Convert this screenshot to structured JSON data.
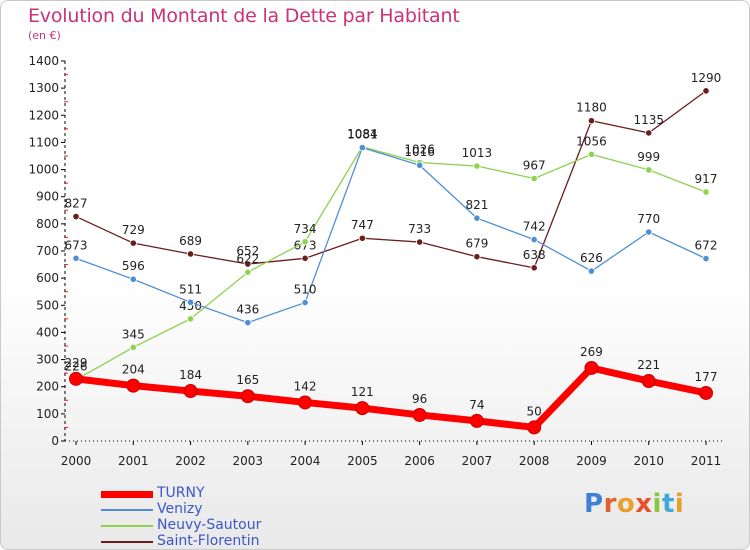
{
  "title": "Evolution du Montant de la Dette par Habitant",
  "subtitle": "(en €)",
  "logo": "Proxiti",
  "chart_data": {
    "type": "line",
    "title": "Evolution du Montant de la Dette par Habitant",
    "subtitle": "(en €)",
    "x": [
      "2000",
      "2001",
      "2002",
      "2003",
      "2004",
      "2005",
      "2006",
      "2007",
      "2008",
      "2009",
      "2010",
      "2011"
    ],
    "ylim": [
      0,
      1400
    ],
    "yticks": [
      0,
      100,
      200,
      300,
      400,
      500,
      600,
      700,
      800,
      900,
      1000,
      1100,
      1200,
      1300,
      1400
    ],
    "grid": false,
    "legend_position": "bottom-left",
    "series": [
      {
        "name": "Saint-Florentin",
        "color": "#6b1d1d",
        "values": [
          827,
          729,
          689,
          652,
          673,
          747,
          733,
          679,
          638,
          1180,
          1135,
          1290
        ]
      },
      {
        "name": "Neuvy-Sautour",
        "color": "#8fd151",
        "values": [
          226,
          345,
          450,
          622,
          734,
          1084,
          1026,
          1013,
          967,
          1056,
          999,
          917
        ]
      },
      {
        "name": "Venizy",
        "color": "#4f8fd4",
        "values": [
          673,
          596,
          511,
          436,
          510,
          1081,
          1016,
          821,
          742,
          626,
          770,
          672
        ]
      },
      {
        "name": "TURNY",
        "color": "#ff0000",
        "values": [
          229,
          204,
          184,
          165,
          142,
          121,
          96,
          74,
          50,
          269,
          221,
          177
        ]
      }
    ]
  }
}
